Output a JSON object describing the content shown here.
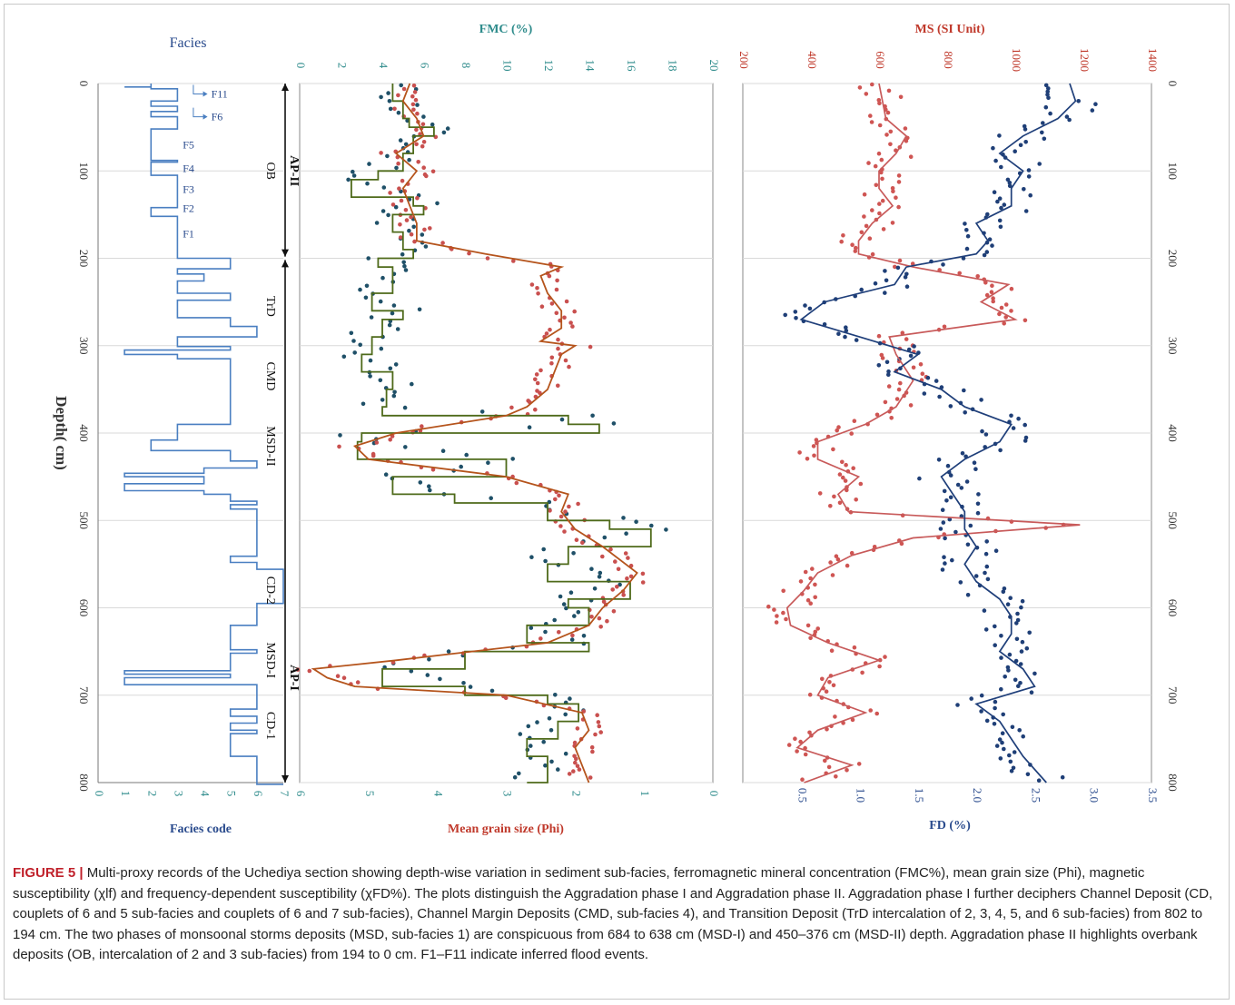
{
  "figure_label": "FIGURE 5 |",
  "caption_text": " Multi-proxy records of the Uchediya section showing depth-wise variation in sediment sub-facies, ferromagnetic mineral concentration (FMC%), mean grain size (Phi), magnetic susceptibility (χlf) and frequency-dependent susceptibility (χFD%). The plots distinguish the Aggradation phase I and Aggradation phase II. Aggradation phase I further deciphers Channel Deposit (CD, couplets of 6 and 5 sub-facies and couplets of 6 and 7 sub-facies), Channel Margin Deposits (CMD, sub-facies 4), and Transition Deposit (TrD intercalation of 2, 3, 4, 5, and 6 sub-facies) from 802 to 194 cm. The two phases of monsoonal storms deposits (MSD, sub-facies 1) are conspicuous from 684 to 638 cm (MSD-I) and 450–376 cm (MSD-II) depth. Aggradation phase II highlights overbank deposits (OB, intercalation of 2 and 3 sub-facies) from 194 to 0 cm. F1–F11 indicate inferred flood events.",
  "colors": {
    "facies_line": "#4a7fc1",
    "fmc_points": "#1f5068",
    "fmc_line": "#4e6a1a",
    "grain_points": "#c9504f",
    "grain_line": "#b5541c",
    "ms_points": "#cf5553",
    "ms_line": "#c85a5a",
    "fd_points": "#1f3f77",
    "fd_line": "#1f3f7a",
    "teal_axis": "#2d8b8b",
    "red_axis": "#c0392b",
    "blue_axis": "#2a4b8d",
    "grid": "#d9d9d9"
  },
  "chart_data": [
    {
      "type": "line",
      "title": "Facies",
      "xlabel": "Facies code",
      "ylabel": "Depth( cm)",
      "xlim": [
        0,
        7
      ],
      "ylim": [
        0,
        800
      ],
      "xticks": [
        0,
        1,
        2,
        3,
        4,
        5,
        6,
        7
      ],
      "yticks": [
        0,
        100,
        200,
        300,
        400,
        500,
        600,
        700,
        800
      ],
      "series": [
        {
          "x": [
            2,
            1,
            2,
            3,
            3,
            2,
            3,
            2,
            3,
            3,
            2,
            3,
            2,
            3,
            3,
            2,
            3,
            3,
            5,
            3,
            4,
            3,
            5,
            3,
            5,
            6,
            3,
            5,
            1,
            3,
            5,
            5,
            3,
            2,
            5,
            6,
            4,
            1,
            4,
            1,
            4,
            5,
            6,
            5,
            6,
            5,
            6,
            7,
            6,
            5,
            6,
            5,
            1,
            5,
            1,
            6,
            5,
            6,
            5,
            6,
            5,
            6,
            7
          ],
          "y": [
            0,
            4,
            4,
            6,
            12,
            20,
            26,
            32,
            38,
            44,
            52,
            88,
            90,
            105,
            117,
            142,
            152,
            192,
            200,
            212,
            218,
            226,
            240,
            248,
            268,
            278,
            290,
            301,
            305,
            310,
            315,
            385,
            390,
            408,
            420,
            432,
            440,
            446,
            450,
            458,
            466,
            470,
            478,
            482,
            487,
            541,
            548,
            556,
            595,
            620,
            648,
            652,
            672,
            676,
            680,
            688,
            716,
            724,
            732,
            740,
            744,
            770,
            802
          ]
        }
      ],
      "annotations": [
        {
          "text": "F11",
          "y": 12
        },
        {
          "text": "F6",
          "y": 38
        },
        {
          "text": "F5",
          "y": 70
        },
        {
          "text": "F4",
          "y": 97
        },
        {
          "text": "F3",
          "y": 121
        },
        {
          "text": "F2",
          "y": 143
        },
        {
          "text": "F1",
          "y": 172
        }
      ]
    },
    {
      "type": "scatter",
      "title": "FMC (%)",
      "xlabel": "Mean  grain size (Phi)",
      "ylabel": "",
      "top_axis": {
        "label": "FMC (%)",
        "lim": [
          0,
          20
        ],
        "ticks": [
          0,
          2,
          4,
          6,
          8,
          10,
          12,
          14,
          16,
          18,
          20
        ]
      },
      "bottom_axis": {
        "label": "Mean  grain size (Phi)",
        "lim": [
          0,
          6
        ],
        "ticks": [
          6,
          5,
          4,
          3,
          2,
          1,
          0
        ],
        "reversed": true
      },
      "ylim": [
        0,
        800
      ],
      "zones": [
        {
          "label": "AP-II",
          "from": 0,
          "to": 200
        },
        {
          "label": "AP-I",
          "from": 200,
          "to": 800
        }
      ],
      "units": [
        {
          "label": "OB",
          "y": 100
        },
        {
          "label": "TrD",
          "y": 255
        },
        {
          "label": "CMD",
          "y": 335
        },
        {
          "label": "MSD-II",
          "y": 415
        },
        {
          "label": "CD-2",
          "y": 580
        },
        {
          "label": "MSD-I",
          "y": 660
        },
        {
          "label": "CD-1",
          "y": 735
        }
      ],
      "series": [
        {
          "name": "FMC",
          "y": [
            0,
            20,
            40,
            50,
            60,
            80,
            100,
            110,
            130,
            140,
            150,
            170,
            190,
            200,
            210,
            240,
            260,
            270,
            290,
            310,
            330,
            350,
            370,
            380,
            390,
            400,
            410,
            430,
            450,
            470,
            480,
            500,
            510,
            530,
            550,
            570,
            590,
            600,
            620,
            640,
            650,
            670,
            690,
            700,
            710,
            730,
            750,
            770,
            800
          ],
          "x": [
            4.5,
            5.0,
            5.3,
            6.5,
            5.5,
            5.0,
            3.8,
            2.5,
            5.5,
            6.0,
            4.5,
            5.0,
            5.5,
            3.8,
            4.5,
            3.5,
            5.0,
            4.0,
            3.5,
            3.0,
            4.5,
            4.2,
            4.0,
            13.0,
            14.5,
            3.0,
            2.8,
            10.0,
            4.5,
            7.5,
            12.0,
            15.0,
            17.0,
            13.0,
            12.0,
            16.0,
            13.0,
            14.0,
            11.0,
            14.0,
            8.0,
            4.0,
            8.0,
            12.0,
            13.5,
            12.5,
            11.0,
            12.0,
            11.0
          ]
        },
        {
          "name": "Mean grain size",
          "y": [
            0,
            20,
            40,
            60,
            80,
            100,
            120,
            140,
            160,
            180,
            195,
            210,
            220,
            240,
            260,
            280,
            295,
            300,
            310,
            330,
            350,
            370,
            380,
            400,
            415,
            430,
            450,
            470,
            490,
            510,
            530,
            560,
            580,
            600,
            620,
            640,
            660,
            670,
            680,
            690,
            700,
            720,
            740,
            760,
            780,
            800
          ],
          "x": [
            4.4,
            4.5,
            4.3,
            4.2,
            4.6,
            4.3,
            4.5,
            4.4,
            4.3,
            4.3,
            3.3,
            2.2,
            2.5,
            2.4,
            2.2,
            2.2,
            2.5,
            2.0,
            2.2,
            2.3,
            2.4,
            2.7,
            3.0,
            4.6,
            5.2,
            5.0,
            3.0,
            2.1,
            2.2,
            2.0,
            1.6,
            1.1,
            1.3,
            1.6,
            1.8,
            2.4,
            4.6,
            5.8,
            5.6,
            5.2,
            3.0,
            1.9,
            1.8,
            2.0,
            1.9,
            1.8
          ]
        }
      ]
    },
    {
      "type": "scatter",
      "title": "MS (SI Unit)",
      "xlabel": "FD (%)",
      "ylabel": "",
      "top_axis": {
        "label": "MS (SI Unit)",
        "lim": [
          200,
          1400
        ],
        "ticks": [
          200,
          400,
          600,
          800,
          1000,
          1200,
          1400
        ]
      },
      "bottom_axis": {
        "label": "FD (%)",
        "lim": [
          0,
          3.5
        ],
        "ticks": [
          0.5,
          1.0,
          1.5,
          2.0,
          2.5,
          3.0,
          3.5
        ]
      },
      "ylim": [
        0,
        800
      ],
      "series": [
        {
          "name": "MS",
          "y": [
            0,
            20,
            40,
            60,
            80,
            100,
            120,
            140,
            160,
            180,
            195,
            210,
            230,
            250,
            270,
            290,
            310,
            340,
            370,
            390,
            410,
            430,
            450,
            470,
            490,
            505,
            520,
            540,
            560,
            580,
            600,
            620,
            640,
            660,
            680,
            700,
            720,
            740,
            760,
            780,
            800
          ],
          "x": [
            600,
            610,
            620,
            680,
            650,
            600,
            600,
            640,
            580,
            540,
            540,
            700,
            980,
            900,
            1000,
            630,
            650,
            700,
            650,
            560,
            420,
            420,
            540,
            480,
            510,
            1190,
            700,
            520,
            420,
            380,
            330,
            340,
            450,
            600,
            450,
            420,
            560,
            420,
            360,
            520,
            380
          ]
        },
        {
          "name": "FD",
          "y": [
            0,
            20,
            40,
            60,
            80,
            100,
            120,
            140,
            160,
            180,
            195,
            210,
            230,
            250,
            270,
            290,
            310,
            330,
            350,
            370,
            390,
            410,
            430,
            450,
            470,
            490,
            510,
            530,
            550,
            570,
            590,
            610,
            630,
            650,
            670,
            690,
            710,
            730,
            750,
            770,
            800
          ],
          "x": [
            2.8,
            2.85,
            2.7,
            2.4,
            2.2,
            2.4,
            2.3,
            2.3,
            2.0,
            2.1,
            2.0,
            1.4,
            1.3,
            0.7,
            0.5,
            1.0,
            1.5,
            1.3,
            1.7,
            1.9,
            2.3,
            2.2,
            1.9,
            1.7,
            1.8,
            1.9,
            1.9,
            2.0,
            1.9,
            2.0,
            2.2,
            2.3,
            2.3,
            2.2,
            2.4,
            2.5,
            2.0,
            2.2,
            2.3,
            2.4,
            2.6
          ]
        }
      ]
    }
  ]
}
